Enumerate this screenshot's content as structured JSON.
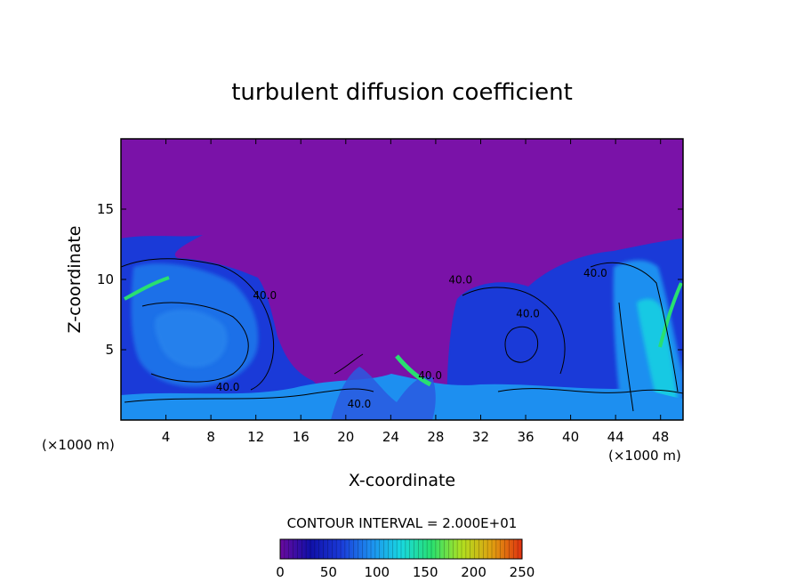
{
  "chart_data": {
    "type": "heatmap",
    "title": "turbulent diffusion coefficient",
    "xlabel": "X-coordinate",
    "ylabel": "Z-coordinate",
    "x_unit": "(×1000 m)",
    "y_unit": "(×1000 m)",
    "xlim": [
      0,
      50
    ],
    "ylim": [
      0,
      20
    ],
    "x_ticks": [
      4,
      8,
      12,
      16,
      20,
      24,
      28,
      32,
      36,
      40,
      44,
      48
    ],
    "y_ticks": [
      5,
      10,
      15
    ],
    "contour_interval_text": "CONTOUR INTERVAL = 2.000E+01",
    "contour_labels": [
      "40.0",
      "40.0",
      "40.0",
      "40.0",
      "40.0",
      "40.0",
      "40.0"
    ],
    "colorbar": {
      "min": 0,
      "max": 250,
      "ticks": [
        0,
        50,
        100,
        150,
        200,
        250
      ],
      "colors": [
        "#6a0a9e",
        "#1010a8",
        "#1a3ad8",
        "#1d8ff0",
        "#18d8e0",
        "#28e070",
        "#b0e020",
        "#e0a010",
        "#e03010"
      ]
    },
    "background_color": "#7a12a8"
  }
}
